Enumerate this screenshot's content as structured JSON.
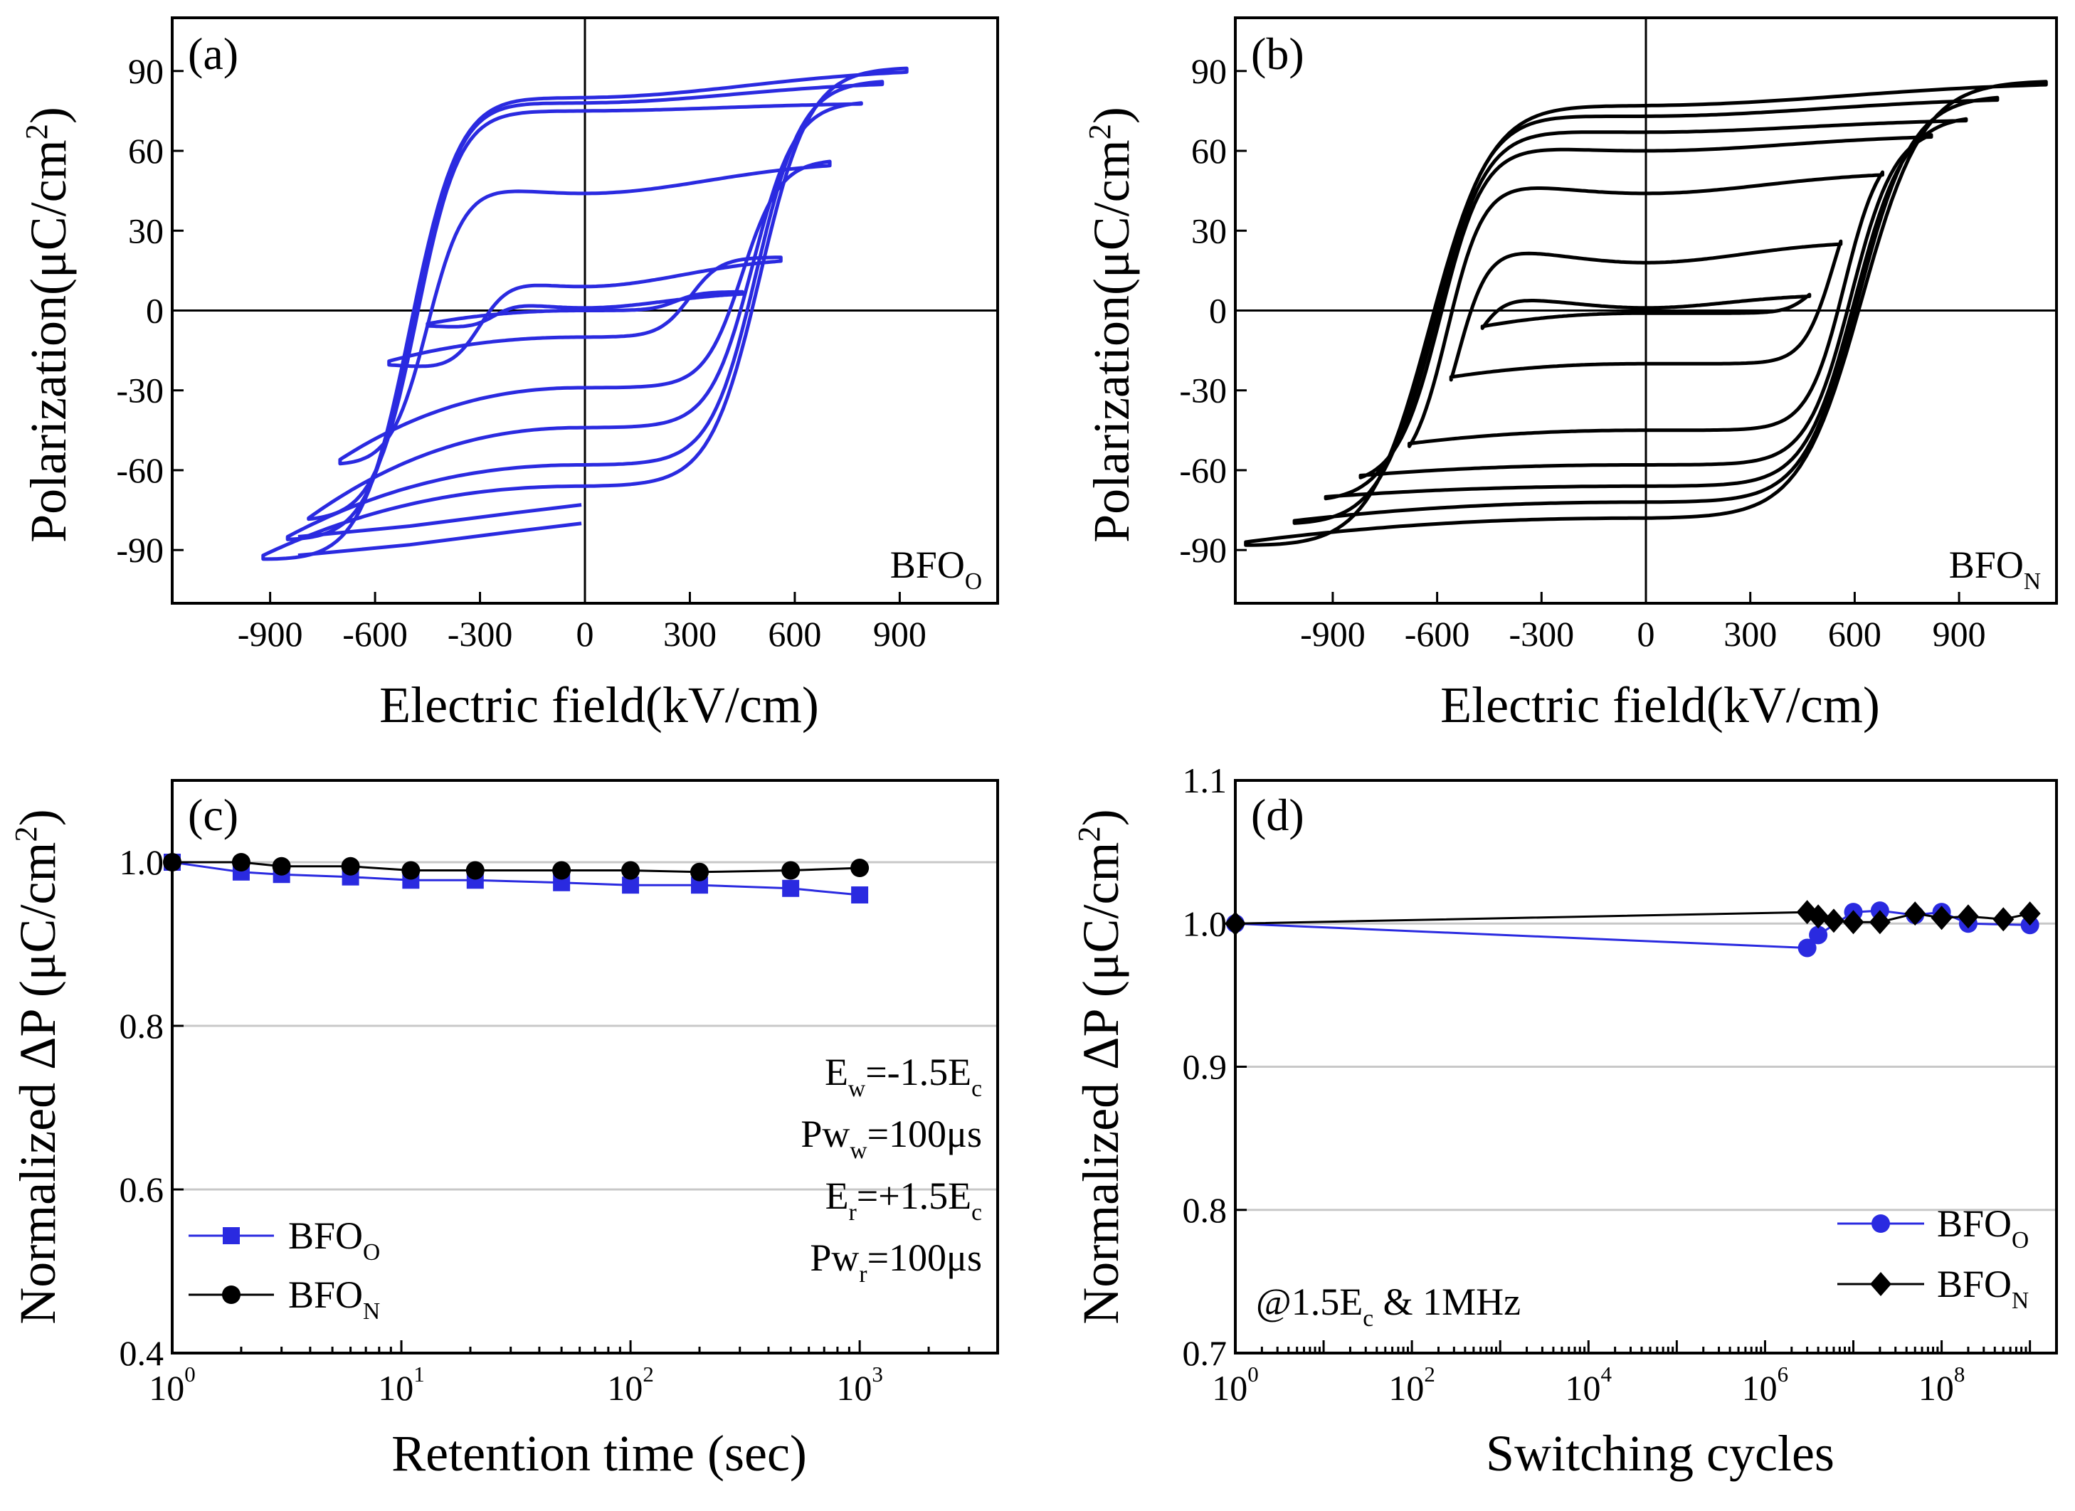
{
  "chart_data": [
    {
      "panel": "(a)",
      "type": "line",
      "title": "",
      "xlabel": "Electric field(kV/cm)",
      "ylabel": "Polarization(μC/cm²)",
      "xlim": [
        -1180,
        1180
      ],
      "ylim": [
        -110,
        110
      ],
      "xticks": [
        -900,
        -600,
        -300,
        0,
        300,
        600,
        900
      ],
      "xtick_labels": [
        "-900",
        "-600",
        "-300",
        "0",
        "300",
        "600",
        "900"
      ],
      "yticks": [
        -90,
        -60,
        -30,
        0,
        30,
        60,
        90
      ],
      "ytick_labels": [
        "-90",
        "-60",
        "-30",
        "0",
        "30",
        "60",
        "90"
      ],
      "annotation": {
        "main": "BFO",
        "sub": "O"
      },
      "color": "#2a2ae0",
      "loops": [
        {
          "Emax": 450,
          "Pmax": 7,
          "Pr": 1,
          "Ec": 260,
          "Pend": 0,
          "Pmin": -5
        },
        {
          "Emax": 560,
          "Pmax": 20,
          "Pr": 9,
          "Ec": 300,
          "Pend": -10,
          "Pmin": -19
        },
        {
          "Emax": 700,
          "Pmax": 56,
          "Pr": 44,
          "Ec": 450,
          "Pend": -29,
          "Pmin": -56
        },
        {
          "Emax": 790,
          "Pmax": 78,
          "Pr": 75,
          "Ec": 480,
          "Pend": -44,
          "Pmin": -78
        },
        {
          "Emax": 850,
          "Pmax": 86,
          "Pr": 78,
          "Ec": 490,
          "Pend": -58,
          "Pmin": -85
        },
        {
          "Emax": 920,
          "Pmax": 91,
          "Pr": 80,
          "Ec": 500,
          "Pend": -66,
          "Pmin": -92
        }
      ],
      "open_ends": [
        {
          "E": 0,
          "P": -73
        },
        {
          "E": 0,
          "P": -80
        }
      ]
    },
    {
      "panel": "(b)",
      "type": "line",
      "title": "",
      "xlabel": "Electric field(kV/cm)",
      "ylabel": "Polarization(μC/cm²)",
      "xlim": [
        -1180,
        1180
      ],
      "ylim": [
        -110,
        110
      ],
      "xticks": [
        -900,
        -600,
        -300,
        0,
        300,
        600,
        900
      ],
      "xtick_labels": [
        "-900",
        "-600",
        "-300",
        "0",
        "300",
        "600",
        "900"
      ],
      "yticks": [
        -90,
        -60,
        -30,
        0,
        30,
        60,
        90
      ],
      "ytick_labels": [
        "-90",
        "-60",
        "-30",
        "0",
        "30",
        "60",
        "90"
      ],
      "annotation": {
        "main": "BFO",
        "sub": "N"
      },
      "color": "#000000",
      "loops": [
        {
          "Emax": 470,
          "Pmax": 6,
          "Pr": 1,
          "Ec": 480,
          "Pend": -1,
          "Pmin": -6
        },
        {
          "Emax": 560,
          "Pmax": 26,
          "Pr": 18,
          "Ec": 540,
          "Pend": -20,
          "Pmin": -25
        },
        {
          "Emax": 680,
          "Pmax": 52,
          "Pr": 44,
          "Ec": 570,
          "Pend": -45,
          "Pmin": -50
        },
        {
          "Emax": 820,
          "Pmax": 66,
          "Pr": 60,
          "Ec": 590,
          "Pend": -58,
          "Pmin": -62
        },
        {
          "Emax": 920,
          "Pmax": 72,
          "Pr": 67,
          "Ec": 600,
          "Pend": -66,
          "Pmin": -70
        },
        {
          "Emax": 1010,
          "Pmax": 80,
          "Pr": 73,
          "Ec": 610,
          "Pend": -72,
          "Pmin": -79
        },
        {
          "Emax": 1150,
          "Pmax": 86,
          "Pr": 77,
          "Ec": 620,
          "Pend": -78,
          "Pmin": -87
        }
      ],
      "open_ends": []
    },
    {
      "panel": "(c)",
      "type": "line",
      "xscale": "log",
      "title": "",
      "xlabel": "Retention time (sec)",
      "ylabel": "Normalized ΔP (μC/cm²)",
      "xlim": [
        1,
        4000
      ],
      "ylim": [
        0.4,
        1.1
      ],
      "xticks": [
        1,
        10,
        100,
        1000
      ],
      "xtick_labels": [
        {
          "base": "10",
          "exp": "0"
        },
        {
          "base": "10",
          "exp": "1"
        },
        {
          "base": "10",
          "exp": "2"
        },
        {
          "base": "10",
          "exp": "3"
        }
      ],
      "yticks": [
        0.4,
        0.6,
        0.8,
        1.0
      ],
      "ytick_labels": [
        "0.4",
        "0.6",
        "0.8",
        "1.0"
      ],
      "grid": true,
      "series": [
        {
          "name": "BFO",
          "sub": "O",
          "color": "#2a2ae0",
          "marker": "square",
          "x": [
            1,
            2,
            3,
            6,
            11,
            21,
            50,
            100,
            200,
            500,
            1000
          ],
          "y": [
            1.0,
            0.988,
            0.985,
            0.982,
            0.978,
            0.978,
            0.975,
            0.972,
            0.972,
            0.968,
            0.96
          ]
        },
        {
          "name": "BFO",
          "sub": "N",
          "color": "#000000",
          "marker": "circle",
          "x": [
            1,
            2,
            3,
            6,
            11,
            21,
            50,
            100,
            200,
            500,
            1000
          ],
          "y": [
            1.0,
            1.0,
            0.995,
            0.995,
            0.99,
            0.99,
            0.99,
            0.99,
            0.988,
            0.99,
            0.993
          ]
        }
      ],
      "conditions": [
        {
          "main": "E",
          "sub": "w",
          "rest": "=-1.5E",
          "sub2": "c"
        },
        {
          "main": "Pw",
          "sub": "w",
          "rest": "=100μs",
          "sub2": ""
        },
        {
          "main": "E",
          "sub": "r",
          "rest": "=+1.5E",
          "sub2": "c"
        },
        {
          "main": "Pw",
          "sub": "r",
          "rest": "=100μs",
          "sub2": ""
        }
      ]
    },
    {
      "panel": "(d)",
      "type": "line",
      "xscale": "log",
      "title": "",
      "xlabel": "Switching cycles",
      "ylabel": "Normalized ΔP (μC/cm²)",
      "xlim": [
        1,
        2000000000
      ],
      "ylim": [
        0.7,
        1.1
      ],
      "xticks": [
        1,
        100,
        10000,
        1000000,
        100000000
      ],
      "xtick_labels": [
        {
          "base": "10",
          "exp": "0"
        },
        {
          "base": "10",
          "exp": "2"
        },
        {
          "base": "10",
          "exp": "4"
        },
        {
          "base": "10",
          "exp": "6"
        },
        {
          "base": "10",
          "exp": "8"
        }
      ],
      "yticks": [
        0.7,
        0.8,
        0.9,
        1.0,
        1.1
      ],
      "ytick_labels": [
        "0.7",
        "0.8",
        "0.9",
        "1.0",
        "1.1"
      ],
      "grid": true,
      "series": [
        {
          "name": "BFO",
          "sub": "O",
          "color": "#2a2ae0",
          "marker": "circle",
          "x": [
            1,
            3000000,
            4000000,
            10000000,
            20000000,
            50000000,
            100000000,
            200000000,
            1000000000
          ],
          "y": [
            1.0,
            0.983,
            0.992,
            1.008,
            1.009,
            1.006,
            1.008,
            1.0,
            0.999
          ]
        },
        {
          "name": "BFO",
          "sub": "N",
          "color": "#000000",
          "marker": "diamond",
          "x": [
            1,
            3000000,
            4000000,
            6000000,
            10000000,
            20000000,
            50000000,
            100000000,
            200000000,
            500000000,
            1000000000
          ],
          "y": [
            1.0,
            1.008,
            1.005,
            1.002,
            1.001,
            1.001,
            1.007,
            1.004,
            1.005,
            1.003,
            1.007
          ]
        }
      ],
      "condition": {
        "pre": "@1.5E",
        "sub": "c",
        "post": " & 1MHz"
      }
    }
  ]
}
